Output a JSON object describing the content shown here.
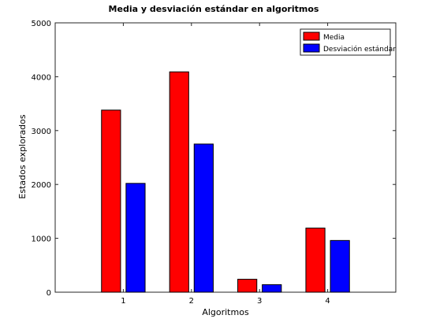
{
  "chart_data": {
    "type": "bar",
    "title": "Media y desviación estándar en algoritmos",
    "xlabel": "Algoritmos",
    "ylabel": "Estados explorados",
    "categories": [
      "1",
      "2",
      "3",
      "4"
    ],
    "xlim": [
      0,
      5
    ],
    "ylim": [
      0,
      5000
    ],
    "yticks": [
      0,
      1000,
      2000,
      3000,
      4000,
      5000
    ],
    "series": [
      {
        "name": "Media",
        "color": "#ff0000",
        "values": [
          3380,
          4090,
          240,
          1190
        ]
      },
      {
        "name": "Desviación estándar",
        "color": "#0000ff",
        "values": [
          2020,
          2750,
          140,
          960
        ]
      }
    ],
    "legend": "top-right",
    "grid": false
  }
}
